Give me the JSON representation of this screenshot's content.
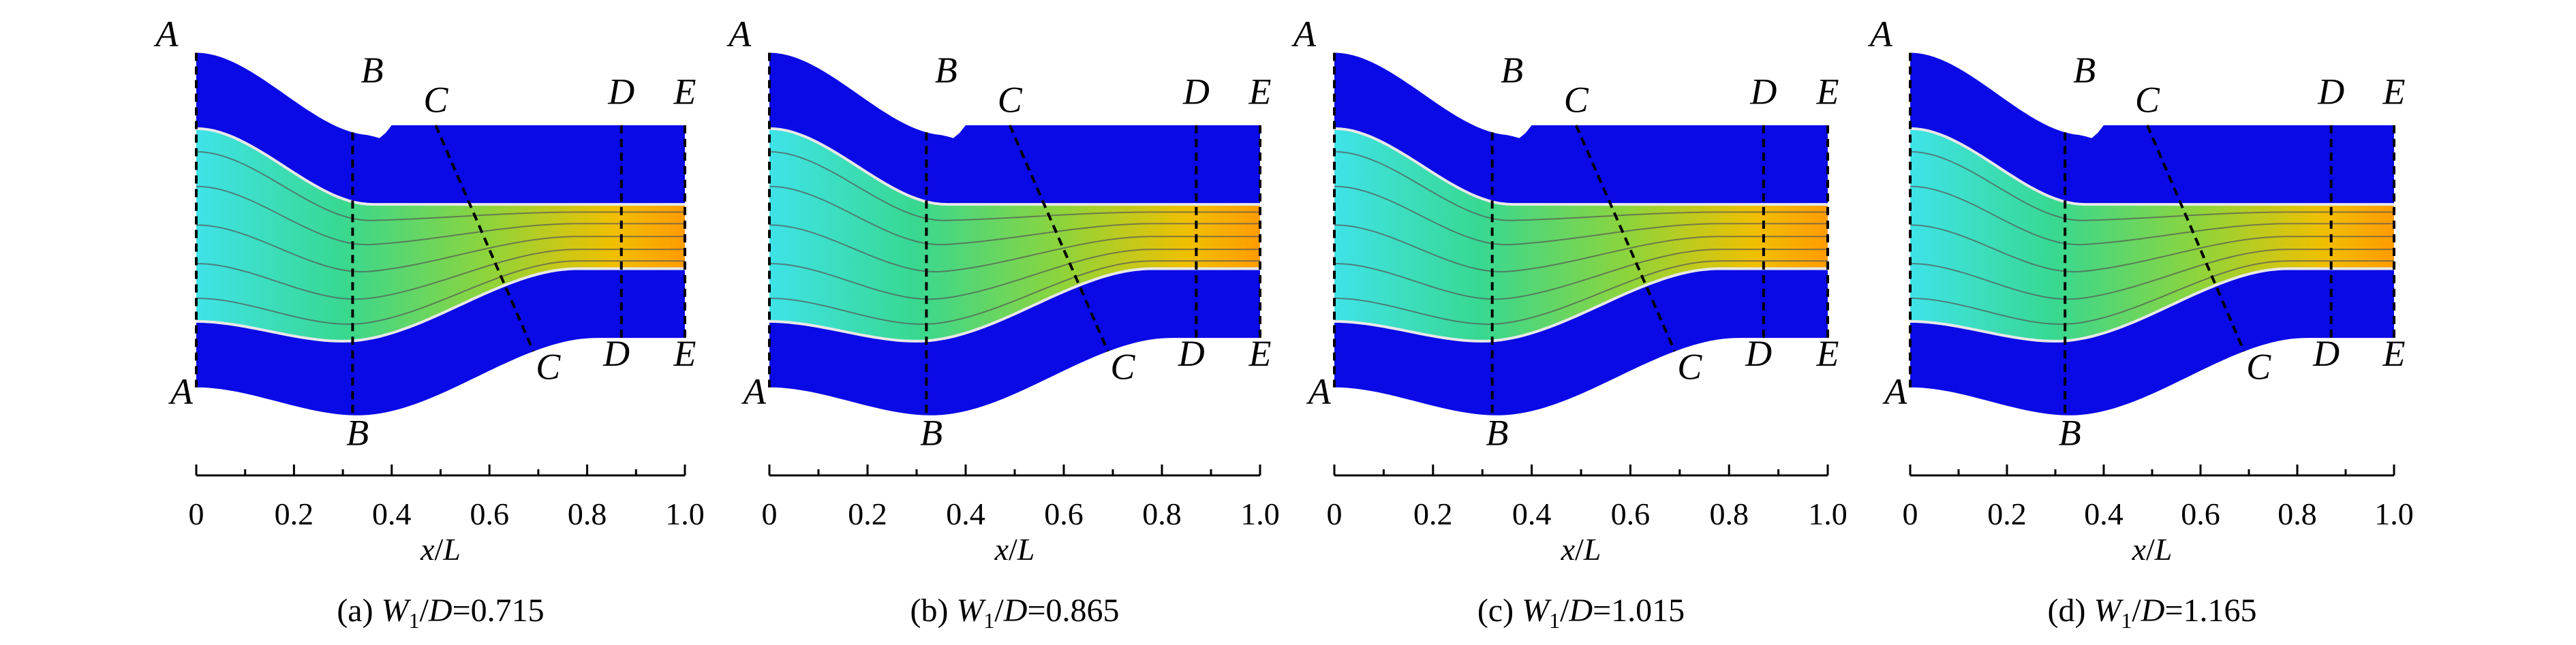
{
  "panels": [
    {
      "sections": [
        {
          "top": "A",
          "bottom": "A"
        },
        {
          "top": "B",
          "bottom": "B"
        },
        {
          "top": "C",
          "bottom": "C"
        },
        {
          "top": "D",
          "bottom": "D"
        },
        {
          "top": "E",
          "bottom": "E"
        }
      ],
      "xlim": [
        0,
        1
      ],
      "xticks": [
        0,
        0.2,
        0.4,
        0.6,
        0.8,
        {
          "value": 1,
          "label": "1.0"
        }
      ],
      "xticks_minor": [
        0.1,
        0.3,
        0.5,
        0.7,
        0.9
      ],
      "xlabel": [
        "x",
        "/",
        "L"
      ],
      "caption": [
        "(a) ",
        "W",
        "1",
        "/",
        "D",
        "=0.715"
      ]
    },
    {
      "sections": [
        {
          "top": "A",
          "bottom": "A"
        },
        {
          "top": "B",
          "bottom": "B"
        },
        {
          "top": "C",
          "bottom": "C"
        },
        {
          "top": "D",
          "bottom": "D"
        },
        {
          "top": "E",
          "bottom": "E"
        }
      ],
      "xlim": [
        0,
        1
      ],
      "xticks": [
        0,
        0.2,
        0.4,
        0.6,
        0.8,
        {
          "value": 1,
          "label": "1.0"
        }
      ],
      "xticks_minor": [
        0.1,
        0.3,
        0.5,
        0.7,
        0.9
      ],
      "xlabel": [
        "x",
        "/",
        "L"
      ],
      "caption": [
        "(b) ",
        "W",
        "1",
        "/",
        "D",
        "=0.865"
      ]
    },
    {
      "sections": [
        {
          "top": "A",
          "bottom": "A"
        },
        {
          "top": "B",
          "bottom": "B"
        },
        {
          "top": "C",
          "bottom": "C"
        },
        {
          "top": "D",
          "bottom": "D"
        },
        {
          "top": "E",
          "bottom": "E"
        }
      ],
      "xlim": [
        0,
        1
      ],
      "xticks": [
        0,
        0.2,
        0.4,
        0.6,
        0.8,
        {
          "value": 1,
          "label": "1.0"
        }
      ],
      "xticks_minor": [
        0.1,
        0.3,
        0.5,
        0.7,
        0.9
      ],
      "xlabel": [
        "x",
        "/",
        "L"
      ],
      "caption": [
        "(c) ",
        "W",
        "1",
        "/",
        "D",
        "=1.015"
      ]
    },
    {
      "sections": [
        {
          "top": "A",
          "bottom": "A"
        },
        {
          "top": "B",
          "bottom": "B"
        },
        {
          "top": "C",
          "bottom": "C"
        },
        {
          "top": "D",
          "bottom": "D"
        },
        {
          "top": "E",
          "bottom": "E"
        }
      ],
      "xlim": [
        0,
        1
      ],
      "xticks": [
        0,
        0.2,
        0.4,
        0.6,
        0.8,
        {
          "value": 1,
          "label": "1.0"
        }
      ],
      "xticks_minor": [
        0.1,
        0.3,
        0.5,
        0.7,
        0.9
      ],
      "xlabel": [
        "x",
        "/",
        "L"
      ],
      "caption": [
        "(d) ",
        "W",
        "1",
        "/",
        "D",
        "=1.165"
      ]
    }
  ]
}
